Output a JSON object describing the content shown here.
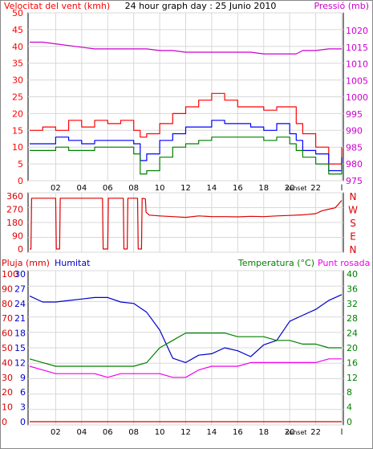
{
  "colors": {
    "wind": "#ff0000",
    "wind_avg": "#0000ff",
    "wind_min": "#008000",
    "pressure": "#cc00cc",
    "direction": "#dd0000",
    "humidity": "#0000cc",
    "temperature": "#008000",
    "dewpoint": "#ee00ee",
    "rain": "#dd0000",
    "grid": "#d8d8d8",
    "frame": "#000000",
    "bg": "#ffffff"
  },
  "chart_data": [
    {
      "type": "line",
      "title": "24 hour graph day : 25 Junio 2010",
      "left_label": "Velocitat del vent (kmh)",
      "right_label": "Pressió (mb)",
      "ylim": [
        0,
        50
      ],
      "y_ticks": [
        "0",
        "5",
        "10",
        "15",
        "20",
        "25",
        "30",
        "35",
        "40",
        "45",
        "50"
      ],
      "y2lim": [
        975,
        1020
      ],
      "y2_ticks": [
        "975",
        "980",
        "985",
        "990",
        "995",
        "1000",
        "1005",
        "1010",
        "1015",
        "1020"
      ],
      "x_ticks": [
        "02",
        "04",
        "06",
        "08",
        "10",
        "12",
        "14",
        "16",
        "18",
        "20",
        "22",
        "l"
      ],
      "x_extra": "sunset",
      "x_hours": [
        0,
        1,
        2,
        3,
        4,
        5,
        6,
        7,
        8,
        8.5,
        9,
        10,
        11,
        12,
        13,
        14,
        15,
        16,
        17,
        18,
        19,
        20,
        20.5,
        21,
        22,
        23,
        24
      ],
      "series": [
        {
          "key": "gust",
          "axis": "left",
          "values": [
            15,
            16,
            15,
            18,
            16,
            18,
            17,
            18,
            15,
            13,
            14,
            17,
            20,
            22,
            24,
            26,
            24,
            22,
            22,
            21,
            22,
            22,
            17,
            14,
            10,
            5,
            10
          ]
        },
        {
          "key": "avg",
          "axis": "left",
          "values": [
            11,
            11,
            13,
            12,
            11,
            12,
            12,
            12,
            11,
            6,
            8,
            12,
            14,
            16,
            16,
            18,
            17,
            17,
            16,
            15,
            17,
            14,
            12,
            9,
            8,
            3,
            7
          ]
        },
        {
          "key": "min",
          "axis": "left",
          "values": [
            9,
            9,
            10,
            9,
            9,
            10,
            10,
            10,
            8,
            2,
            3,
            7,
            10,
            11,
            12,
            13,
            13,
            13,
            13,
            12,
            13,
            11,
            9,
            7,
            5,
            2,
            5
          ]
        },
        {
          "key": "press",
          "axis": "right",
          "values": [
            1016.5,
            1016.5,
            1016,
            1015.5,
            1015,
            1014.5,
            1014.5,
            1014.5,
            1014.5,
            1014.5,
            1014.5,
            1014,
            1014,
            1013.5,
            1013.5,
            1013.5,
            1013.5,
            1013.5,
            1013.5,
            1013,
            1013,
            1013,
            1013,
            1014,
            1014,
            1014.5,
            1014.5
          ]
        }
      ]
    },
    {
      "type": "line",
      "title": "",
      "left_ticks": [
        "0",
        "90",
        "180",
        "270",
        "360"
      ],
      "ylim": [
        0,
        360
      ],
      "right_letters": [
        "N",
        "W",
        "S",
        "E",
        "N"
      ],
      "x_hours": [
        0,
        0.1,
        0.15,
        2.0,
        2.05,
        2.3,
        2.35,
        5.6,
        5.65,
        6.0,
        6.05,
        7.2,
        7.25,
        7.5,
        7.55,
        8.3,
        8.35,
        8.6,
        8.65,
        8.9,
        8.95,
        9.2,
        10,
        11,
        12,
        13,
        14,
        15,
        16,
        17,
        18,
        19,
        20,
        21,
        22,
        22.5,
        23,
        23.5,
        24
      ],
      "values": [
        0,
        0,
        345,
        345,
        0,
        0,
        345,
        345,
        0,
        0,
        345,
        345,
        0,
        0,
        345,
        345,
        0,
        0,
        345,
        340,
        250,
        230,
        225,
        220,
        215,
        225,
        220,
        220,
        218,
        222,
        220,
        225,
        228,
        232,
        240,
        260,
        270,
        280,
        330
      ]
    },
    {
      "type": "line",
      "title": "",
      "left_label_1": "Pluja (mm)",
      "left_label_2": "Humitat",
      "right_label_1": "Temperatura (°C)",
      "right_label_2": "Punt rosada",
      "left1_ticks": [
        "0",
        "10",
        "20",
        "30",
        "40",
        "50",
        "60",
        "70",
        "80",
        "90",
        "100"
      ],
      "left2_ticks": [
        "0",
        "3",
        "6",
        "9",
        "12",
        "15",
        "18",
        "21",
        "24",
        "27",
        "30"
      ],
      "right_ticks": [
        "0",
        "4",
        "8",
        "12",
        "16",
        "20",
        "24",
        "28",
        "32",
        "36",
        "40"
      ],
      "x_ticks": [
        "02",
        "04",
        "06",
        "08",
        "10",
        "12",
        "14",
        "16",
        "18",
        "20",
        "22",
        "l"
      ],
      "x_extra": "sunset",
      "x_hours": [
        0,
        1,
        2,
        3,
        4,
        5,
        6,
        7,
        8,
        9,
        10,
        11,
        12,
        13,
        14,
        15,
        16,
        17,
        18,
        19,
        20,
        21,
        22,
        23,
        24
      ],
      "series": [
        {
          "key": "humidity",
          "axis": "left",
          "scale": "0-100",
          "values": [
            85,
            81,
            81,
            82,
            83,
            84,
            84,
            81,
            80,
            74,
            62,
            43,
            40,
            45,
            46,
            50,
            48,
            44,
            52,
            55,
            68,
            72,
            76,
            82,
            86
          ]
        },
        {
          "key": "temperature",
          "axis": "right",
          "values": [
            17,
            16,
            15,
            15,
            15,
            15,
            15,
            15,
            15,
            16,
            20,
            22,
            24,
            24,
            24,
            24,
            23,
            23,
            23,
            22,
            22,
            21,
            21,
            20,
            20
          ]
        },
        {
          "key": "dewpoint",
          "axis": "right",
          "values": [
            15,
            14,
            13,
            13,
            13,
            13,
            12,
            13,
            13,
            13,
            13,
            12,
            12,
            14,
            15,
            15,
            15,
            16,
            16,
            16,
            16,
            16,
            16,
            17,
            17
          ]
        },
        {
          "key": "rain",
          "axis": "left",
          "scale": "0-100",
          "values": [
            0,
            0,
            0,
            0,
            0,
            0,
            0,
            0,
            0,
            0,
            0,
            0,
            0,
            0,
            0,
            0,
            0,
            0,
            0,
            0,
            0,
            0,
            0,
            0,
            0
          ]
        }
      ]
    }
  ]
}
